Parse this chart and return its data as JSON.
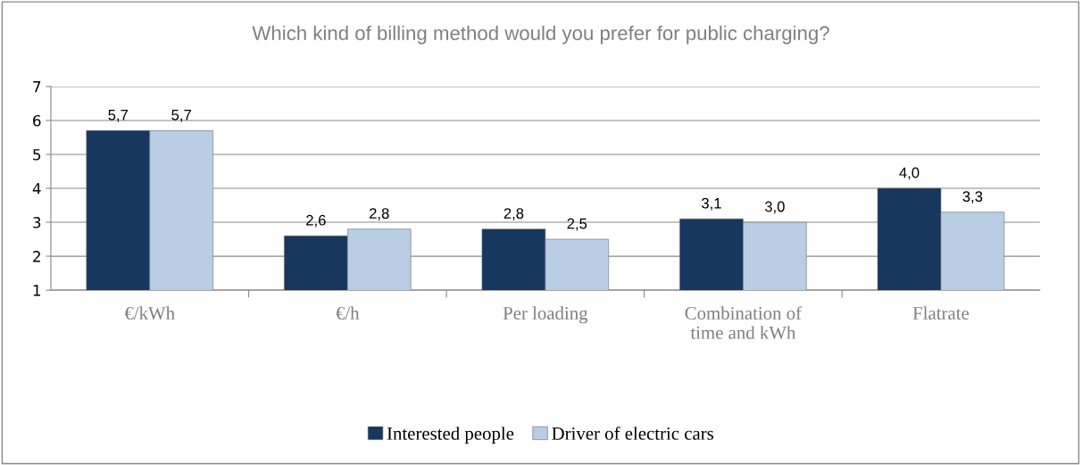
{
  "chart_data": {
    "type": "bar",
    "title": "Which kind of billing method would you prefer for public charging?",
    "categories": [
      "€/kWh",
      "€/h",
      "Per loading",
      "Combination of\ntime and kWh",
      "Flatrate"
    ],
    "series": [
      {
        "name": "Interested people",
        "color": "#17375e",
        "values": [
          5.7,
          2.6,
          2.8,
          3.1,
          4.0
        ],
        "value_labels": [
          "5,7",
          "2,6",
          "2,8",
          "3,1",
          "4,0"
        ]
      },
      {
        "name": "Driver of electric cars",
        "color": "#b9cde5",
        "values": [
          5.7,
          2.8,
          2.5,
          3.0,
          3.3
        ],
        "value_labels": [
          "5,7",
          "2,8",
          "2,5",
          "3,0",
          "3,3"
        ]
      }
    ],
    "ylim": [
      1,
      7
    ],
    "yticks": [
      1,
      2,
      3,
      4,
      5,
      6,
      7
    ],
    "grid": "y",
    "legend": "bottom"
  }
}
